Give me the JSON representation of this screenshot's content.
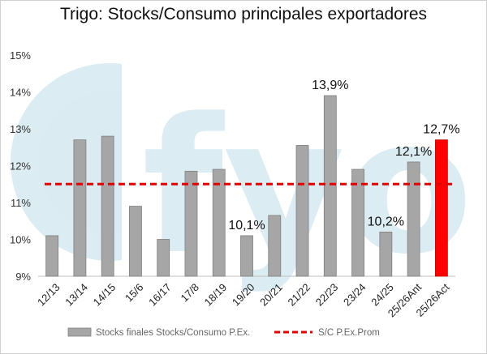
{
  "chart_data": {
    "type": "bar",
    "title": "Trigo: Stocks/Consumo principales exportadores",
    "xlabel": "",
    "ylabel": "",
    "ylim": [
      9,
      15
    ],
    "yticks": [
      "9%",
      "10%",
      "11%",
      "12%",
      "13%",
      "14%",
      "15%"
    ],
    "categories": [
      "12/13",
      "13/14",
      "14/15",
      "15/6",
      "16/17",
      "17/8",
      "18/19",
      "19/20",
      "20/21",
      "21/22",
      "22/23",
      "23/24",
      "24/25",
      "25/26Ant",
      "25/26Act"
    ],
    "series": [
      {
        "name": "Stocks finales Stocks/Consumo P.Ex.",
        "type": "bar",
        "color": "#a6a6a6",
        "values": [
          10.1,
          12.7,
          12.8,
          10.9,
          10.0,
          11.85,
          11.9,
          10.1,
          10.65,
          12.55,
          13.9,
          11.9,
          10.2,
          12.1,
          12.7
        ],
        "highlight": {
          "index": 14,
          "color": "#ff0000"
        }
      },
      {
        "name": "S/C P.Ex.Prom",
        "type": "line",
        "style": "dashed",
        "color": "#e00000",
        "value": 11.5
      }
    ],
    "data_labels": [
      {
        "index": 7,
        "text": "10,1%"
      },
      {
        "index": 10,
        "text": "13,9%"
      },
      {
        "index": 12,
        "text": "10,2%"
      },
      {
        "index": 13,
        "text": "12,1%"
      },
      {
        "index": 14,
        "text": "12,7%"
      }
    ],
    "grid": false,
    "legend_position": "bottom",
    "watermark": "fyo"
  }
}
